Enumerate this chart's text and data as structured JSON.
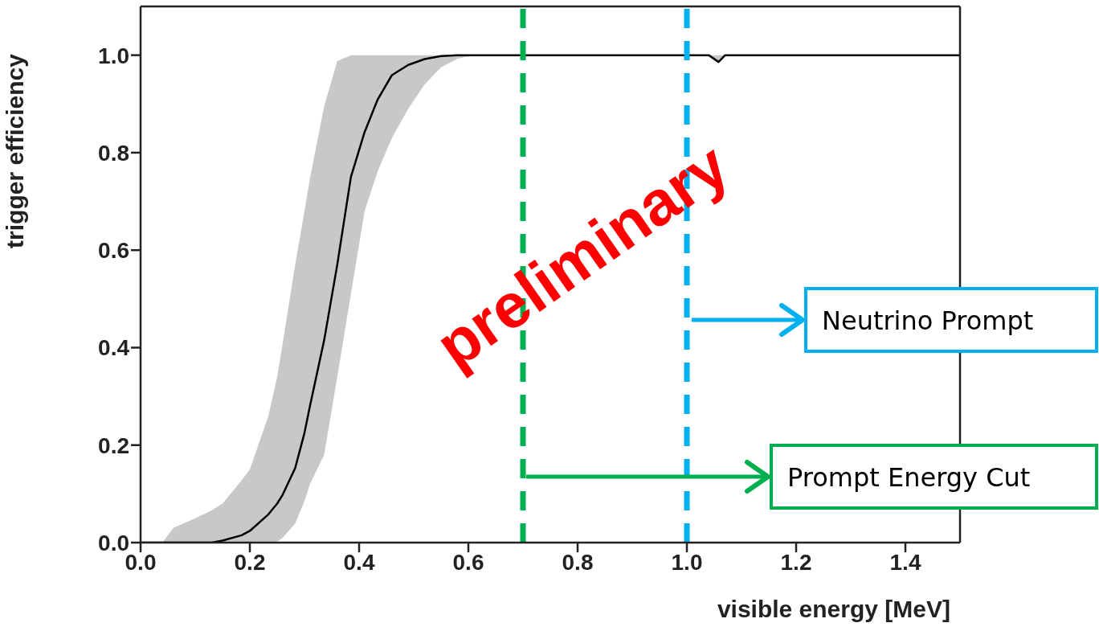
{
  "chart_data": {
    "type": "line",
    "xlabel": "visible energy [MeV]",
    "ylabel": "trigger efficiency",
    "xlim": [
      0,
      1.5
    ],
    "ylim": [
      0,
      1.1
    ],
    "xticks": [
      {
        "value": 0,
        "label": "0.0"
      },
      0.2,
      0.4,
      0.6,
      0.8,
      {
        "value": 1,
        "label": "1.0"
      },
      1.2,
      1.4
    ],
    "yticks": [
      {
        "value": 0,
        "label": "0.0"
      },
      0.2,
      0.4,
      0.6,
      0.8,
      {
        "value": 1,
        "label": "1.0"
      }
    ],
    "x": [
      0,
      0.04,
      0.06,
      0.1,
      0.13,
      0.15,
      0.185,
      0.2,
      0.234,
      0.25,
      0.26,
      0.283,
      0.3,
      0.31,
      0.336,
      0.36,
      0.385,
      0.41,
      0.434,
      0.46,
      0.49,
      0.52,
      0.55,
      0.58,
      0.61,
      0.7,
      1.0,
      1.04,
      1.058,
      1.07,
      1.5
    ],
    "series": [
      {
        "color": "#000000",
        "values": [
          0,
          0,
          0,
          0,
          0,
          0.004,
          0.015,
          0.024,
          0.058,
          0.08,
          0.098,
          0.153,
          0.225,
          0.28,
          0.415,
          0.57,
          0.75,
          0.842,
          0.909,
          0.959,
          0.98,
          0.992,
          0.998,
          1,
          1,
          1,
          1,
          1,
          0.986,
          1,
          1
        ],
        "lower": [
          0,
          0,
          0,
          0,
          0,
          0,
          0,
          0,
          0,
          0.002,
          0.01,
          0.039,
          0.085,
          0.12,
          0.18,
          0.34,
          0.51,
          0.68,
          0.762,
          0.83,
          0.89,
          0.94,
          0.975,
          0.993,
          1,
          1,
          1,
          1,
          0.984,
          1,
          1
        ],
        "upper": [
          0,
          0,
          0.03,
          0.05,
          0.066,
          0.08,
          0.128,
          0.15,
          0.26,
          0.34,
          0.408,
          0.57,
          0.68,
          0.747,
          0.895,
          0.988,
          1,
          1,
          1,
          1,
          1,
          1,
          1,
          1,
          1,
          1,
          1,
          1,
          1,
          1,
          1
        ]
      }
    ],
    "ref_lines": [
      {
        "axis": "x",
        "value": 0.7,
        "label": "Prompt Energy Cut",
        "color": "#00b050",
        "line_style": "dashed"
      },
      {
        "axis": "x",
        "value": 1.0,
        "label": "Neutrino Prompt",
        "color": "#00b0f0",
        "line_style": "dashed"
      }
    ],
    "annotations": [
      "preliminary"
    ],
    "grid": false,
    "marker": "none",
    "line_style": "solid"
  }
}
